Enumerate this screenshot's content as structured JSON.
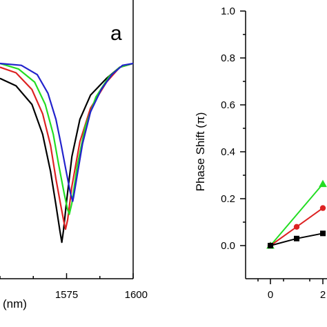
{
  "chart_data": [
    {
      "type": "line",
      "panel_label": "a",
      "xlabel_fragment": "(nm)",
      "ylabel": "",
      "xlim": [
        1550,
        1600
      ],
      "x_ticks": [
        1575,
        1600
      ],
      "grid": false,
      "series": [
        {
          "color": "#000000",
          "points": [
            [
              1550,
              0.92
            ],
            [
              1556,
              0.88
            ],
            [
              1562,
              0.78
            ],
            [
              1566,
              0.62
            ],
            [
              1569,
              0.42
            ],
            [
              1571,
              0.24
            ],
            [
              1572.5,
              0.1
            ],
            [
              1573.2,
              0.04
            ],
            [
              1573.8,
              0.1
            ],
            [
              1575,
              0.26
            ],
            [
              1577,
              0.5
            ],
            [
              1580,
              0.7
            ],
            [
              1584,
              0.83
            ],
            [
              1590,
              0.92
            ],
            [
              1595,
              0.98
            ],
            [
              1600,
              1.0
            ]
          ]
        },
        {
          "color": "#dd2222",
          "points": [
            [
              1550,
              0.98
            ],
            [
              1556,
              0.95
            ],
            [
              1562,
              0.86
            ],
            [
              1566,
              0.73
            ],
            [
              1569,
              0.56
            ],
            [
              1571,
              0.38
            ],
            [
              1572.8,
              0.24
            ],
            [
              1574,
              0.15
            ],
            [
              1574.6,
              0.11
            ],
            [
              1575.4,
              0.16
            ],
            [
              1577,
              0.34
            ],
            [
              1580,
              0.58
            ],
            [
              1584,
              0.76
            ],
            [
              1590,
              0.9
            ],
            [
              1595,
              0.98
            ],
            [
              1600,
              1.0
            ]
          ]
        },
        {
          "color": "#22dd22",
          "points": [
            [
              1550,
              1.0
            ],
            [
              1557,
              0.97
            ],
            [
              1563,
              0.9
            ],
            [
              1567,
              0.78
            ],
            [
              1570,
              0.62
            ],
            [
              1572,
              0.46
            ],
            [
              1574,
              0.31
            ],
            [
              1575.3,
              0.22
            ],
            [
              1576,
              0.19
            ],
            [
              1577,
              0.25
            ],
            [
              1579,
              0.45
            ],
            [
              1582,
              0.66
            ],
            [
              1586,
              0.82
            ],
            [
              1591,
              0.93
            ],
            [
              1595,
              0.98
            ],
            [
              1600,
              1.0
            ]
          ]
        },
        {
          "color": "#2222cc",
          "points": [
            [
              1550,
              1.0
            ],
            [
              1558,
              0.99
            ],
            [
              1564,
              0.94
            ],
            [
              1568,
              0.84
            ],
            [
              1571,
              0.7
            ],
            [
              1573,
              0.56
            ],
            [
              1575,
              0.41
            ],
            [
              1576.5,
              0.3
            ],
            [
              1577.3,
              0.26
            ],
            [
              1577.6,
              0.28
            ],
            [
              1579,
              0.4
            ],
            [
              1581,
              0.57
            ],
            [
              1584,
              0.74
            ],
            [
              1588,
              0.86
            ],
            [
              1592,
              0.94
            ],
            [
              1596,
              0.99
            ],
            [
              1600,
              1.0
            ]
          ]
        }
      ]
    },
    {
      "type": "line",
      "ylabel": "Phase Shift (π)",
      "xlabel": "",
      "ylim": [
        0.0,
        1.0
      ],
      "y_ticks": [
        "0.0",
        "0.2",
        "0.4",
        "0.6",
        "0.8",
        "1.0"
      ],
      "x_ticks": [
        "0",
        "2"
      ],
      "grid": false,
      "series": [
        {
          "color": "#22dd22",
          "marker": "triangle",
          "x": [
            0,
            2
          ],
          "y": [
            0.0,
            0.263
          ]
        },
        {
          "color": "#dd2222",
          "marker": "circle",
          "x": [
            0,
            1,
            2
          ],
          "y": [
            0.0,
            0.08,
            0.16
          ]
        },
        {
          "color": "#000000",
          "marker": "square",
          "x": [
            0,
            1,
            2
          ],
          "y": [
            0.0,
            0.03,
            0.052
          ]
        }
      ]
    }
  ]
}
